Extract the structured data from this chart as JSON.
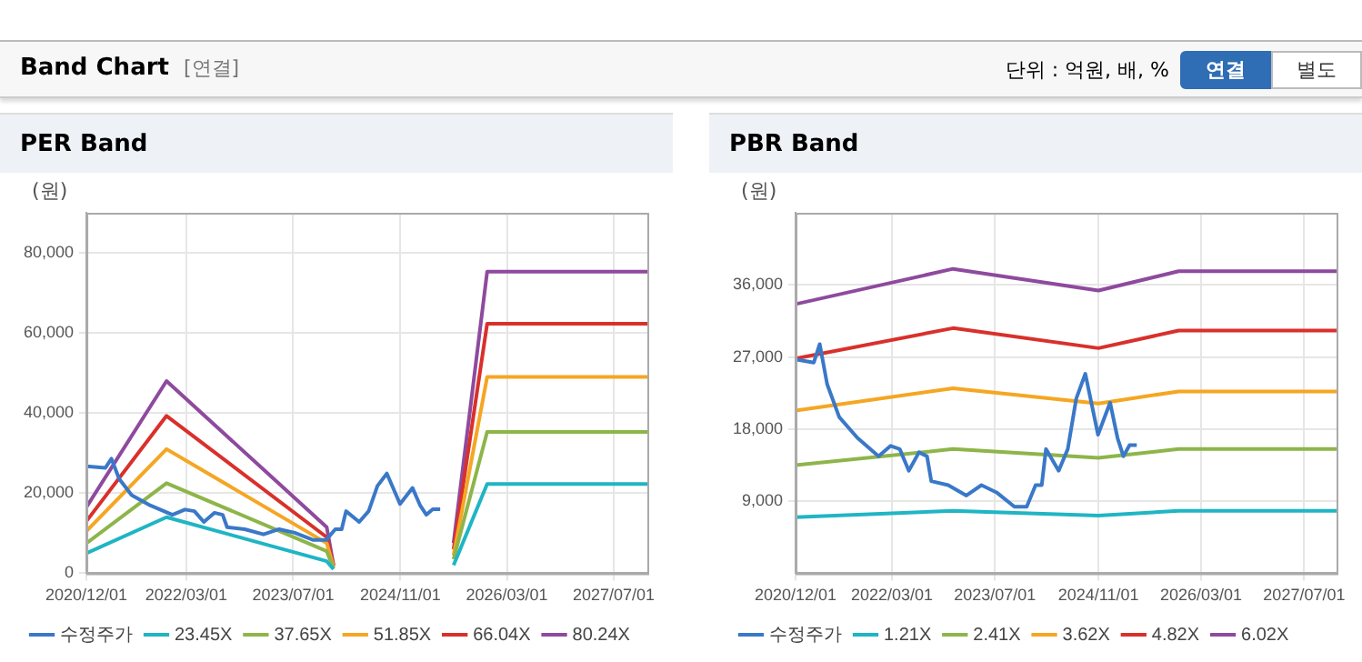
{
  "chart_data": [
    {
      "type": "other",
      "title": "Band Chart",
      "annotations": [
        "[연결]",
        "단위 : 억원, 배, %",
        "연결",
        "별도"
      ]
    },
    {
      "type": "line",
      "title": "PER Band",
      "ylabel": "(원)",
      "xlim": [
        "2020-12-01",
        "2027-12-01"
      ],
      "ylim": [
        0,
        90000
      ],
      "xticks": [
        {
          "value": "2020-12-01",
          "label": "2020/12/01"
        },
        {
          "value": "2022-03-01",
          "label": "2022/03/01"
        },
        {
          "value": "2023-07-01",
          "label": "2023/07/01"
        },
        {
          "value": "2024-11-01",
          "label": "2024/11/01"
        },
        {
          "value": "2026-03-01",
          "label": "2026/03/01"
        },
        {
          "value": "2027-07-01",
          "label": "2027/07/01"
        }
      ],
      "yticks": [
        {
          "value": 0,
          "label": "0"
        },
        {
          "value": 20000,
          "label": "20,000"
        },
        {
          "value": 40000,
          "label": "40,000"
        },
        {
          "value": 60000,
          "label": "60,000"
        },
        {
          "value": 80000,
          "label": "80,000"
        }
      ],
      "grid": true,
      "legend": "bottom",
      "marker": "none",
      "line_style": "solid",
      "series": [
        {
          "name": "수정주가",
          "color": "#3a78c8",
          "x": [
            "2020-12-01",
            "2021-02-25",
            "2021-03-25",
            "2021-04-29",
            "2021-06-25",
            "2021-09-19",
            "2021-12-28",
            "2022-02-23",
            "2022-04-07",
            "2022-05-20",
            "2022-07-07",
            "2022-08-14",
            "2022-09-03",
            "2022-11-22",
            "2023-02-16",
            "2023-04-28",
            "2023-07-08",
            "2023-10-01",
            "2023-11-28",
            "2024-01-09",
            "2024-02-07",
            "2024-02-27",
            "2024-04-27",
            "2024-06-09",
            "2024-07-19",
            "2024-08-31",
            "2024-10-30",
            "2024-12-26",
            "2025-01-30",
            "2025-02-27",
            "2025-03-28",
            "2025-05-01"
          ],
          "values": [
            26700,
            26300,
            28600,
            23600,
            19500,
            16900,
            14600,
            15900,
            15500,
            12800,
            15100,
            14600,
            11500,
            11000,
            9700,
            11000,
            10100,
            8300,
            8300,
            11000,
            11000,
            15500,
            12800,
            15500,
            21800,
            24900,
            17300,
            21300,
            16900,
            14600,
            16000,
            16000
          ]
        },
        {
          "name": "23.45X",
          "color": "#1fb5c4",
          "x": [
            "2020-12-01",
            "2021-12-01",
            "2023-12-01",
            "2024-01-01",
            "2024-06-01",
            "2025-07-01",
            "2025-12-01",
            "2027-12-01"
          ],
          "values": [
            5000,
            14000,
            3000,
            1000,
            null,
            2000,
            22300,
            22300
          ]
        },
        {
          "name": "37.65X",
          "color": "#8db54a",
          "x": [
            "2020-12-01",
            "2021-12-01",
            "2023-12-01",
            "2024-01-01",
            "2024-06-01",
            "2025-07-01",
            "2025-12-01",
            "2027-12-01"
          ],
          "values": [
            7500,
            22500,
            5500,
            1200,
            null,
            3500,
            35300,
            35300
          ]
        },
        {
          "name": "51.85X",
          "color": "#f5a623",
          "x": [
            "2020-12-01",
            "2021-12-01",
            "2023-12-01",
            "2024-01-01",
            "2024-06-01",
            "2025-07-01",
            "2025-12-01",
            "2027-12-01"
          ],
          "values": [
            10500,
            31000,
            7500,
            1500,
            null,
            4500,
            49000,
            49000
          ]
        },
        {
          "name": "66.04X",
          "color": "#d9302b",
          "x": [
            "2020-12-01",
            "2021-12-01",
            "2023-12-01",
            "2024-01-01",
            "2024-06-01",
            "2025-07-01",
            "2025-12-01",
            "2027-12-01"
          ],
          "values": [
            13000,
            39300,
            9000,
            1800,
            null,
            6000,
            62300,
            62300
          ]
        },
        {
          "name": "80.24X",
          "color": "#8e4a9e",
          "x": [
            "2020-12-01",
            "2021-12-01",
            "2023-12-01",
            "2024-01-01",
            "2024-06-01",
            "2025-07-01",
            "2025-12-01",
            "2027-12-01"
          ],
          "values": [
            16500,
            48000,
            11500,
            2000,
            null,
            7500,
            75300,
            75300
          ]
        }
      ]
    },
    {
      "type": "line",
      "title": "PBR Band",
      "ylabel": "(원)",
      "xlim": [
        "2020-12-01",
        "2027-12-01"
      ],
      "ylim": [
        0,
        45000
      ],
      "xticks": [
        {
          "value": "2020-12-01",
          "label": "2020/12/01"
        },
        {
          "value": "2022-03-01",
          "label": "2022/03/01"
        },
        {
          "value": "2023-07-01",
          "label": "2023/07/01"
        },
        {
          "value": "2024-11-01",
          "label": "2024/11/01"
        },
        {
          "value": "2026-03-01",
          "label": "2026/03/01"
        },
        {
          "value": "2027-07-01",
          "label": "2027/07/01"
        }
      ],
      "yticks": [
        {
          "value": 9000,
          "label": "9,000"
        },
        {
          "value": 18000,
          "label": "18,000"
        },
        {
          "value": 27000,
          "label": "27,000"
        },
        {
          "value": 36000,
          "label": "36,000"
        }
      ],
      "grid": true,
      "legend": "bottom",
      "marker": "none",
      "line_style": "solid",
      "series": [
        {
          "name": "수정주가",
          "color": "#3a78c8",
          "x": [
            "2020-12-01",
            "2021-02-25",
            "2021-03-25",
            "2021-04-29",
            "2021-06-25",
            "2021-09-19",
            "2021-12-28",
            "2022-02-23",
            "2022-04-07",
            "2022-05-20",
            "2022-07-07",
            "2022-08-14",
            "2022-09-03",
            "2022-11-22",
            "2023-02-16",
            "2023-04-28",
            "2023-07-08",
            "2023-10-01",
            "2023-11-28",
            "2024-01-09",
            "2024-02-07",
            "2024-02-27",
            "2024-04-27",
            "2024-06-09",
            "2024-07-19",
            "2024-08-31",
            "2024-10-30",
            "2024-12-26",
            "2025-01-30",
            "2025-02-27",
            "2025-03-28",
            "2025-05-01"
          ],
          "values": [
            26700,
            26300,
            28600,
            23600,
            19500,
            16900,
            14600,
            15900,
            15500,
            12800,
            15100,
            14600,
            11500,
            11000,
            9700,
            11000,
            10100,
            8300,
            8300,
            11000,
            11000,
            15500,
            12800,
            15500,
            21800,
            24900,
            17300,
            21300,
            16900,
            14600,
            16000,
            16000
          ]
        },
        {
          "name": "1.21X",
          "color": "#1fb5c4",
          "x": [
            "2020-12-01",
            "2022-12-15",
            "2024-11-01",
            "2025-11-15",
            "2027-12-01"
          ],
          "values": [
            7000,
            7800,
            7200,
            7800,
            7800
          ]
        },
        {
          "name": "2.41X",
          "color": "#8db54a",
          "x": [
            "2020-12-01",
            "2022-12-15",
            "2024-11-01",
            "2025-11-15",
            "2027-12-01"
          ],
          "values": [
            13500,
            15500,
            14400,
            15500,
            15500
          ]
        },
        {
          "name": "3.62X",
          "color": "#f5a623",
          "x": [
            "2020-12-01",
            "2022-12-15",
            "2024-11-01",
            "2025-11-15",
            "2027-12-01"
          ],
          "values": [
            20300,
            23100,
            21200,
            22700,
            22700
          ]
        },
        {
          "name": "4.82X",
          "color": "#d9302b",
          "x": [
            "2020-12-01",
            "2022-12-15",
            "2024-11-01",
            "2025-11-15",
            "2027-12-01"
          ],
          "values": [
            26800,
            30600,
            28100,
            30300,
            30300
          ]
        },
        {
          "name": "6.02X",
          "color": "#8e4a9e",
          "x": [
            "2020-12-01",
            "2022-12-15",
            "2024-11-01",
            "2025-11-15",
            "2027-12-01"
          ],
          "values": [
            33600,
            38000,
            35300,
            37700,
            37700
          ]
        }
      ]
    }
  ]
}
